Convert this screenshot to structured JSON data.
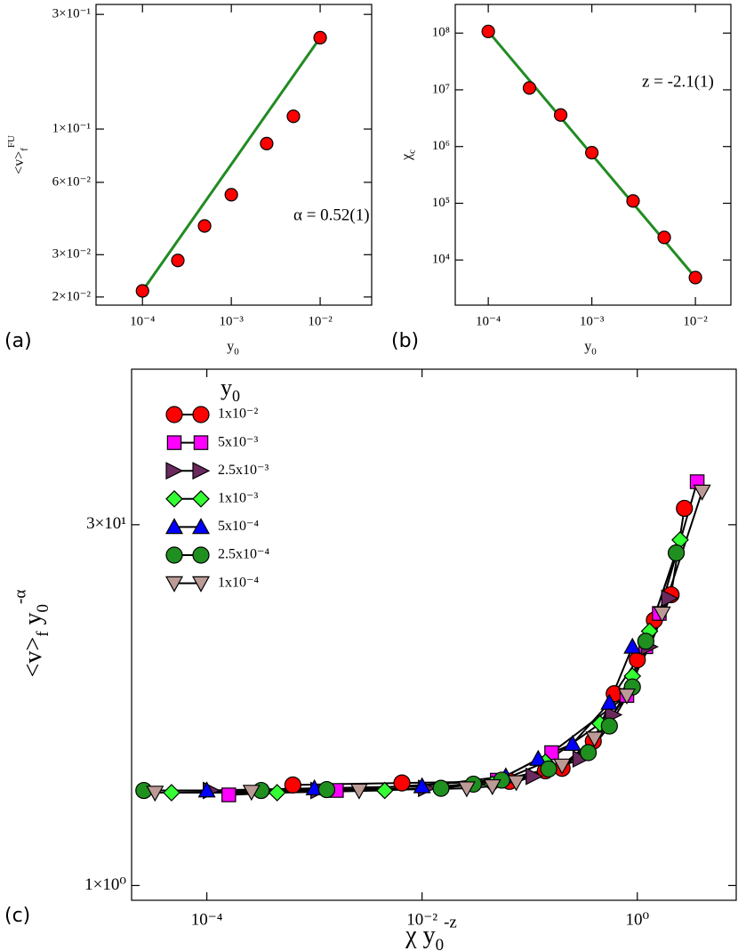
{
  "chart_data": [
    {
      "type": "scatter",
      "panel_label": "(a)",
      "xscale": "log",
      "yscale": "log",
      "xlim": [
        3e-05,
        0.038
      ],
      "ylim": [
        0.0185,
        0.33
      ],
      "xticks": [
        {
          "value": 0.0001,
          "label": "10⁻⁴"
        },
        {
          "value": 0.001,
          "label": "10⁻³"
        },
        {
          "value": 0.01,
          "label": "10⁻²"
        }
      ],
      "yticks": [
        {
          "value": 0.02,
          "label": "2×10⁻²"
        },
        {
          "value": 0.03,
          "label": "3×10⁻²"
        },
        {
          "value": 0.06,
          "label": "6×10⁻²"
        },
        {
          "value": 0.1,
          "label": "1×10⁻¹"
        },
        {
          "value": 0.3,
          "label": "3×10⁻¹"
        }
      ],
      "xlabel": [
        {
          "text": "y"
        },
        {
          "sub": "0"
        }
      ],
      "ylabel": [
        {
          "text": "<v>"
        },
        {
          "sub": "f"
        },
        {
          "sup": "FU"
        }
      ],
      "annotation": "α = 0.52(1)",
      "series": [
        {
          "color": "#ff0000",
          "marker": "circle",
          "line": false,
          "x": [
            0.0001,
            0.00025,
            0.0005,
            0.001,
            0.0025,
            0.005,
            0.01
          ],
          "values": [
            0.0212,
            0.0284,
            0.0395,
            0.0533,
            0.087,
            0.113,
            0.24
          ]
        },
        {
          "color": "#228b22",
          "marker": "none",
          "line": true,
          "x": [
            0.0001,
            0.01
          ],
          "values": [
            0.0212,
            0.24
          ]
        }
      ]
    },
    {
      "type": "scatter",
      "panel_label": "(b)",
      "xscale": "log",
      "yscale": "log",
      "xlim": [
        4.8e-05,
        0.022
      ],
      "ylim": [
        1600,
        320000000
      ],
      "xticks": [
        {
          "value": 0.0001,
          "label": "10⁻⁴"
        },
        {
          "value": 0.001,
          "label": "10⁻³"
        },
        {
          "value": 0.01,
          "label": "10⁻²"
        }
      ],
      "yticks": [
        {
          "value": 10000,
          "label": "10⁴"
        },
        {
          "value": 100000,
          "label": "10⁵"
        },
        {
          "value": 1000000,
          "label": "10⁶"
        },
        {
          "value": 10000000,
          "label": "10⁷"
        },
        {
          "value": 100000000,
          "label": "10⁸"
        }
      ],
      "xlabel": [
        {
          "text": "y"
        },
        {
          "sub": "0"
        }
      ],
      "ylabel": [
        {
          "text": "χ"
        },
        {
          "sub": "c"
        }
      ],
      "annotation": "z = -2.1(1)",
      "series": [
        {
          "color": "#ff0000",
          "marker": "circle",
          "line": false,
          "x": [
            0.0001,
            0.00025,
            0.0005,
            0.001,
            0.0025,
            0.005,
            0.01
          ],
          "values": [
            107000000,
            10800000,
            3600000,
            780000,
            110000,
            25000,
            4900
          ]
        },
        {
          "color": "#228b22",
          "marker": "none",
          "line": true,
          "x": [
            0.0001,
            0.01
          ],
          "values": [
            107000000,
            4900
          ]
        }
      ]
    },
    {
      "type": "line",
      "panel_label": "(c)",
      "xscale": "log",
      "yscale": "log",
      "xlim": [
        2e-05,
        8.3
      ],
      "ylim": [
        0.87,
        130
      ],
      "xticks": [
        {
          "value": 0.0001,
          "label": "10⁻⁴"
        },
        {
          "value": 0.01,
          "label": "10⁻²"
        },
        {
          "value": 1,
          "label": "10⁰"
        }
      ],
      "yticks": [
        {
          "value": 1,
          "label": "1×10⁰"
        },
        {
          "value": 30,
          "label": "3×10¹"
        }
      ],
      "xlabel": [
        {
          "text": "χ y"
        },
        {
          "sub": "0"
        },
        {
          "sup": "-z"
        }
      ],
      "ylabel": [
        {
          "text": "<v>"
        },
        {
          "sub": "f"
        },
        {
          "text": " y"
        },
        {
          "sub": "0"
        },
        {
          "sup": "-α"
        }
      ],
      "legend": "upper left",
      "legend_title": [
        {
          "text": "y"
        },
        {
          "sub": "0"
        }
      ],
      "line_color": "#000000",
      "series": [
        {
          "name": "1x10⁻²",
          "color": "#ff0000",
          "marker": "circle",
          "line": true,
          "x": [
            0.00063,
            0.0065,
            0.065,
            0.14,
            0.2,
            0.39,
            0.61,
            1.0,
            1.44,
            2.06,
            2.74
          ],
          "values": [
            2.58,
            2.63,
            2.67,
            2.95,
            3.02,
            3.9,
            6.1,
            8.4,
            12.2,
            15.5,
            35
          ]
        },
        {
          "name": "5x10⁻³",
          "color": "#ff00ff",
          "marker": "square",
          "line": true,
          "x": [
            0.00016,
            0.0016,
            0.05,
            0.16,
            0.8,
            1.2,
            1.6,
            3.6
          ],
          "values": [
            2.35,
            2.45,
            2.7,
            3.5,
            6.0,
            9.5,
            13,
            45
          ]
        },
        {
          "name": "2.5x10⁻³",
          "color": "#6b2a5e",
          "marker": "triangle-right",
          "line": true,
          "x": [
            0.00011,
            0.0011,
            0.011,
            0.11,
            0.3,
            0.6,
            1.3,
            2.0
          ],
          "values": [
            2.45,
            2.45,
            2.5,
            2.8,
            3.3,
            5.0,
            9.5,
            15
          ]
        },
        {
          "name": "1x10⁻³",
          "color": "#33ff33",
          "marker": "diamond",
          "line": true,
          "x": [
            4.7e-05,
            0.00045,
            0.0045,
            0.045,
            0.14,
            0.45,
            0.9,
            1.3,
            2.5
          ],
          "values": [
            2.4,
            2.4,
            2.45,
            2.6,
            3.2,
            4.6,
            7.2,
            11,
            26
          ]
        },
        {
          "name": "5x10⁻⁴",
          "color": "#0000ff",
          "marker": "triangle-up",
          "line": true,
          "x": [
            0.0001,
            0.001,
            0.01,
            0.06,
            0.12,
            0.25,
            0.55,
            0.9
          ],
          "values": [
            2.45,
            2.5,
            2.55,
            2.8,
            3.3,
            3.8,
            5.6,
            9.5
          ]
        },
        {
          "name": "2.5x10⁻⁴",
          "color": "#1f8f1f",
          "marker": "circle",
          "line": true,
          "x": [
            2.6e-05,
            0.00032,
            0.0013,
            0.015,
            0.03,
            0.055,
            0.15,
            0.35,
            0.55,
            0.9,
            1.2,
            2.3
          ],
          "values": [
            2.45,
            2.45,
            2.47,
            2.5,
            2.6,
            2.7,
            3.0,
            3.5,
            4.5,
            6.5,
            10,
            23
          ]
        },
        {
          "name": "1x10⁻⁴",
          "color": "#bc9a96",
          "marker": "triangle-down",
          "line": true,
          "x": [
            3.3e-05,
            0.00026,
            0.0026,
            0.026,
            0.045,
            0.075,
            0.2,
            0.4,
            0.8,
            1.7,
            4.0
          ],
          "values": [
            2.4,
            2.42,
            2.45,
            2.5,
            2.55,
            2.65,
            3.1,
            4.0,
            6.0,
            13,
            41
          ]
        }
      ]
    }
  ]
}
